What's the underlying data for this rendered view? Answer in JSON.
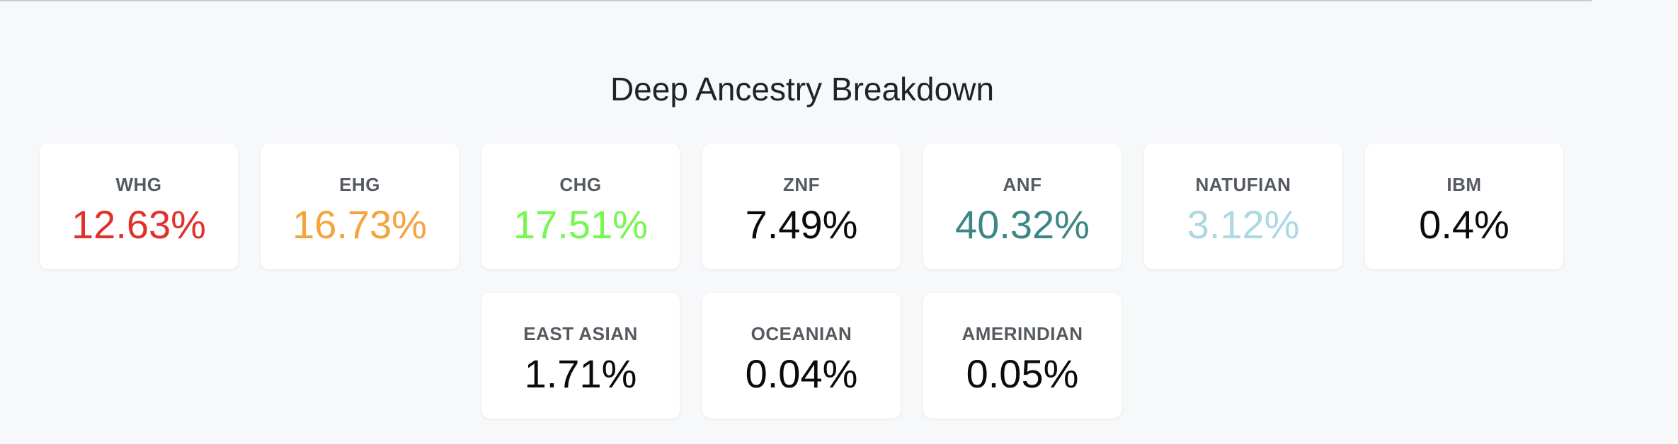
{
  "title": "Deep Ancestry Breakdown",
  "components": [
    {
      "label": "WHG",
      "value": "12.63%",
      "color": "#e0312b"
    },
    {
      "label": "EHG",
      "value": "16.73%",
      "color": "#f5a33d"
    },
    {
      "label": "CHG",
      "value": "17.51%",
      "color": "#74f74f"
    },
    {
      "label": "ZNF",
      "value": "7.49%",
      "color": "#0b0b0b"
    },
    {
      "label": "ANF",
      "value": "40.32%",
      "color": "#3b8786"
    },
    {
      "label": "NATUFIAN",
      "value": "3.12%",
      "color": "#acd8e3"
    },
    {
      "label": "IBM",
      "value": "0.4%",
      "color": "#0b0b0b"
    },
    {
      "label": "EAST ASIAN",
      "value": "1.71%",
      "color": "#0b0b0b"
    },
    {
      "label": "OCEANIAN",
      "value": "0.04%",
      "color": "#0b0b0b"
    },
    {
      "label": "AMERINDIAN",
      "value": "0.05%",
      "color": "#0b0b0b"
    }
  ]
}
